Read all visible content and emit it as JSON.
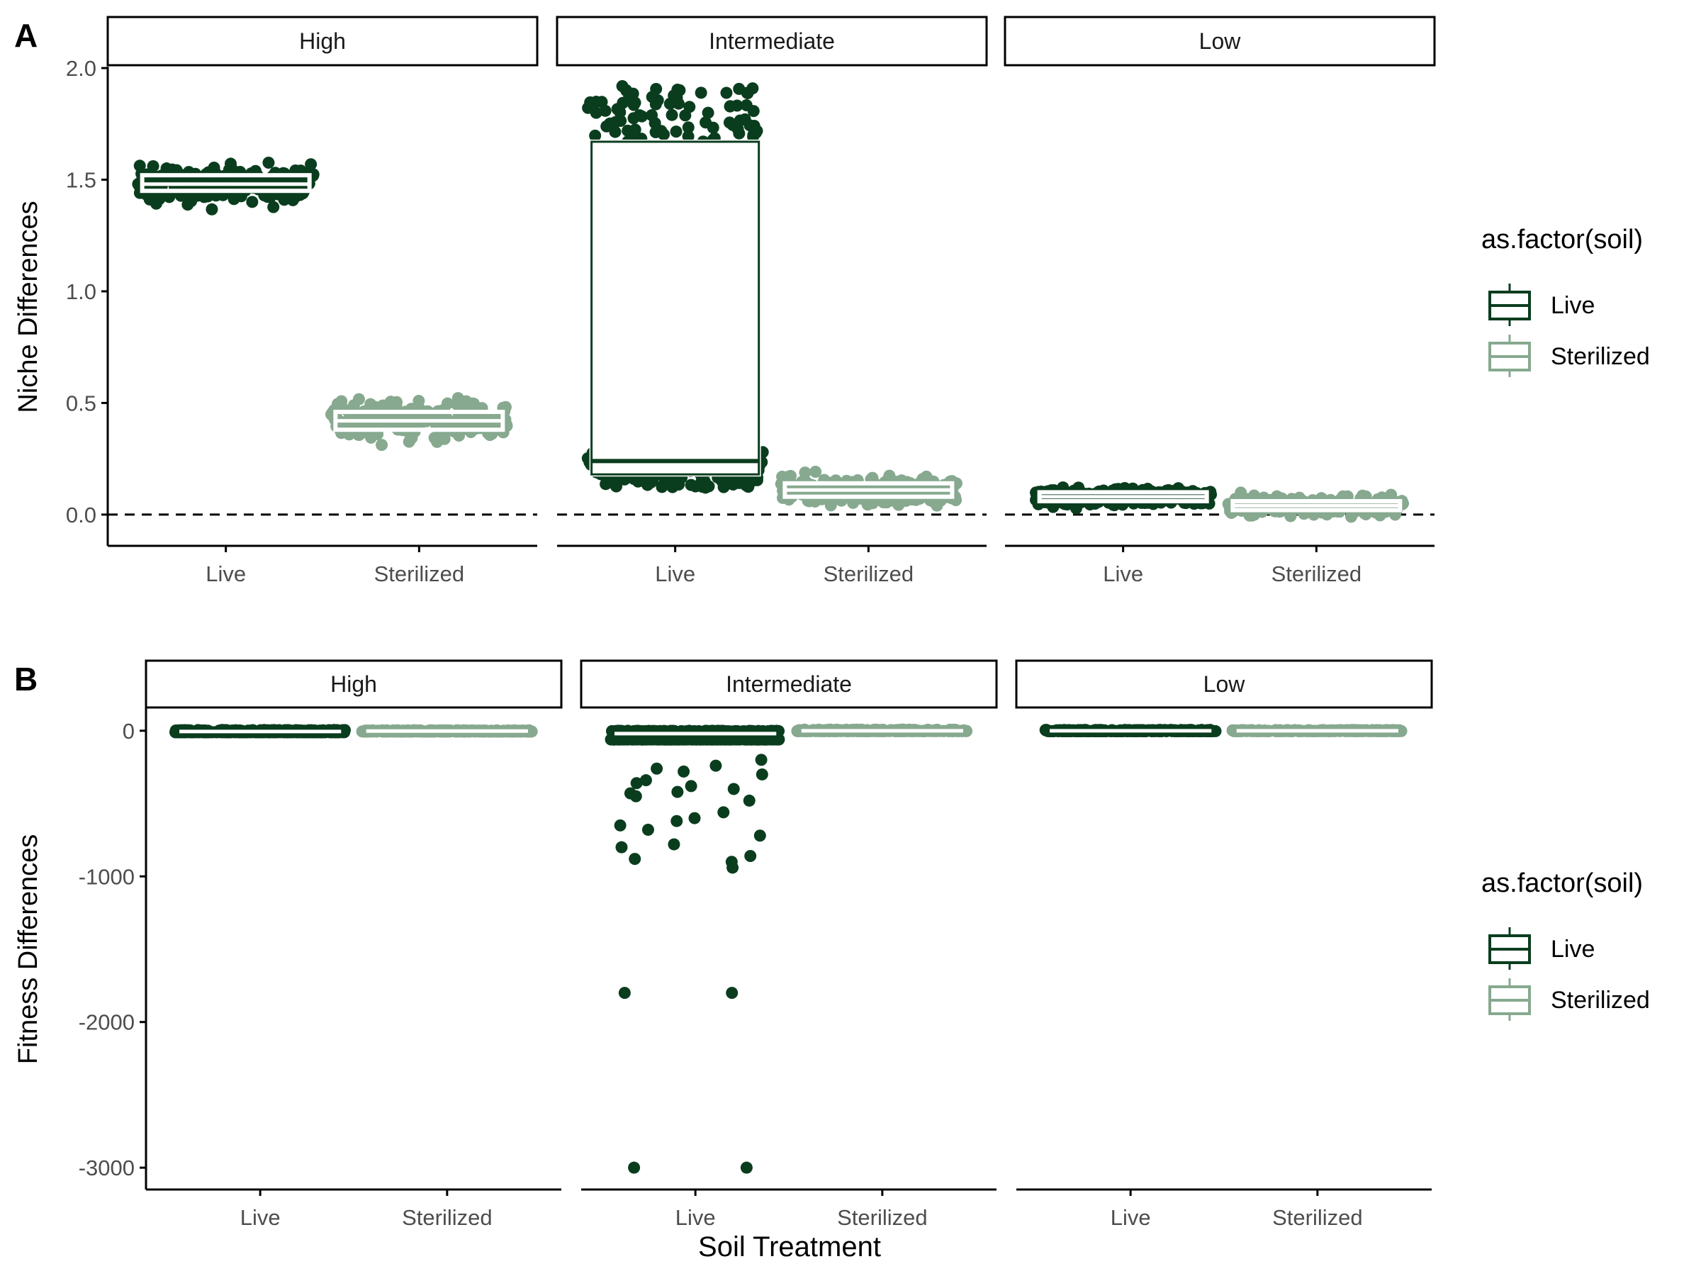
{
  "colors": {
    "live": "#0a3d1e",
    "sterilized": "#87a98f",
    "axis": "#000000",
    "tick_text": "#4d4d4d"
  },
  "facets": [
    "High",
    "Intermediate",
    "Low"
  ],
  "x_categories": [
    "Live",
    "Sterilized"
  ],
  "xlabel": "Soil Treatment",
  "legend": {
    "title": "as.factor(soil)",
    "items": [
      "Live",
      "Sterilized"
    ]
  },
  "chart_data": [
    {
      "panel": "A",
      "type": "boxplot_jitter",
      "ylabel": "Niche Differences",
      "ylim": [
        -0.14,
        2.0
      ],
      "yticks": [
        0.0,
        0.5,
        1.0,
        1.5,
        2.0
      ],
      "ytick_labels": [
        "0.0",
        "0.5",
        "1.0",
        "1.5",
        "2.0"
      ],
      "reference_line": 0,
      "groups": [
        {
          "facet": "High",
          "soil": "Live",
          "q1": 1.45,
          "median": 1.48,
          "q3": 1.52,
          "min": 1.32,
          "max": 1.67
        },
        {
          "facet": "High",
          "soil": "Sterilized",
          "q1": 0.38,
          "median": 0.42,
          "q3": 0.46,
          "min": 0.24,
          "max": 0.61
        },
        {
          "facet": "Intermediate",
          "soil": "Live",
          "q1": 0.18,
          "median": 0.24,
          "q3": 1.67,
          "min": 0.07,
          "max": 1.92
        },
        {
          "facet": "Intermediate",
          "soil": "Sterilized",
          "q1": 0.08,
          "median": 0.11,
          "q3": 0.14,
          "min": 0.02,
          "max": 0.27
        },
        {
          "facet": "Low",
          "soil": "Live",
          "q1": 0.06,
          "median": 0.08,
          "q3": 0.1,
          "min": 0.02,
          "max": 0.19
        },
        {
          "facet": "Low",
          "soil": "Sterilized",
          "q1": 0.02,
          "median": 0.04,
          "q3": 0.06,
          "min": -0.06,
          "max": 0.12
        }
      ]
    },
    {
      "panel": "B",
      "type": "boxplot_jitter",
      "ylabel": "Fitness Differences",
      "ylim": [
        -3150,
        150
      ],
      "yticks": [
        0,
        -1000,
        -2000,
        -3000
      ],
      "ytick_labels": [
        "0",
        "-1000",
        "-2000",
        "-3000"
      ],
      "groups": [
        {
          "facet": "High",
          "soil": "Live",
          "q1": -10,
          "median": -5,
          "q3": 0,
          "min": -60,
          "max": 5
        },
        {
          "facet": "High",
          "soil": "Sterilized",
          "q1": -5,
          "median": -2,
          "q3": 0,
          "min": -20,
          "max": 3
        },
        {
          "facet": "Intermediate",
          "soil": "Live",
          "q1": -60,
          "median": -20,
          "q3": -5,
          "min": -3000,
          "max": 0,
          "outliers": [
            -3000,
            -3000,
            -1800,
            -1800,
            -940,
            -900,
            -880,
            -860,
            -800,
            -780,
            -720,
            -680,
            -650,
            -620,
            -600,
            -560,
            -480,
            -450,
            -430,
            -420,
            -400,
            -380,
            -360,
            -340,
            -300,
            -280,
            -260,
            -240,
            -200
          ]
        },
        {
          "facet": "Intermediate",
          "soil": "Sterilized",
          "q1": -2,
          "median": 0,
          "q3": 2,
          "min": -10,
          "max": 8
        },
        {
          "facet": "Low",
          "soil": "Live",
          "q1": -3,
          "median": 0,
          "q3": 2,
          "min": -10,
          "max": 6
        },
        {
          "facet": "Low",
          "soil": "Sterilized",
          "q1": -2,
          "median": 0,
          "q3": 2,
          "min": -8,
          "max": 5
        }
      ]
    }
  ],
  "panel_labels": [
    "A",
    "B"
  ]
}
